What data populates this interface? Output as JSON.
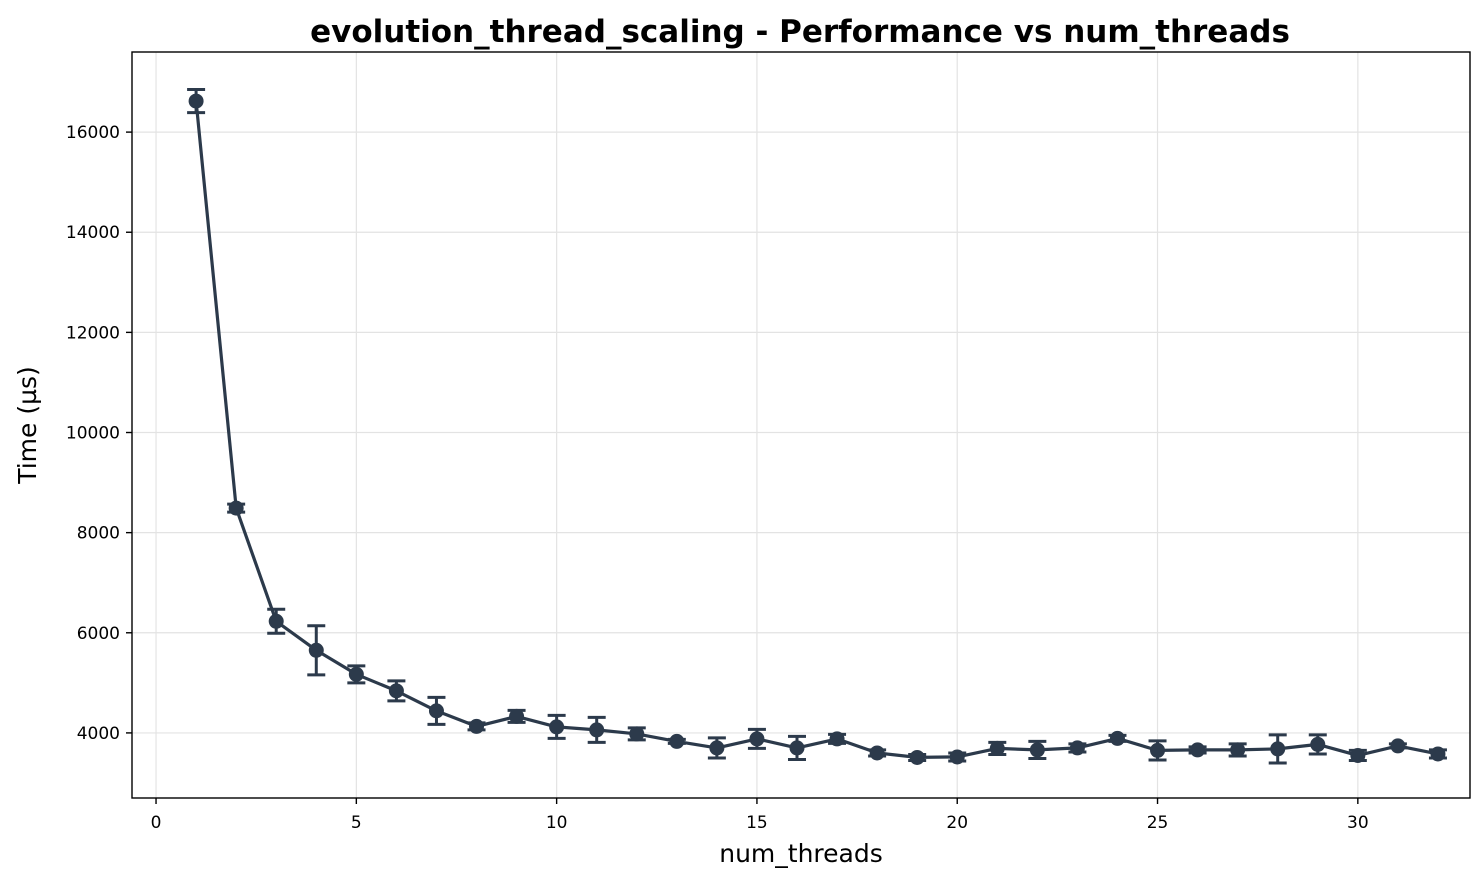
{
  "chart_data": {
    "type": "line",
    "title": "evolution_thread_scaling - Performance vs num_threads",
    "xlabel": "num_threads",
    "ylabel": "Time (µs)",
    "xlim": [
      -0.6,
      32.8
    ],
    "ylim": [
      2700,
      17600
    ],
    "x_ticks": [
      0,
      5,
      10,
      15,
      20,
      25,
      30
    ],
    "y_ticks": [
      4000,
      6000,
      8000,
      10000,
      12000,
      14000,
      16000
    ],
    "grid": true,
    "color": "#2c3a4b",
    "series": [
      {
        "x": [
          1,
          2,
          3,
          4,
          5,
          6,
          7,
          8,
          9,
          10,
          11,
          12,
          13,
          14,
          15,
          16,
          17,
          18,
          19,
          20,
          21,
          22,
          23,
          24,
          25,
          26,
          27,
          28,
          29,
          30,
          31,
          32
        ],
        "values": [
          16620,
          8490,
          6230,
          5650,
          5170,
          4840,
          4440,
          4130,
          4330,
          4120,
          4060,
          3980,
          3830,
          3700,
          3880,
          3700,
          3880,
          3600,
          3510,
          3520,
          3690,
          3660,
          3700,
          3890,
          3650,
          3660,
          3660,
          3680,
          3770,
          3550,
          3740,
          3580
        ],
        "error": [
          230,
          80,
          240,
          490,
          170,
          200,
          270,
          70,
          120,
          230,
          250,
          120,
          40,
          200,
          190,
          230,
          90,
          60,
          60,
          80,
          120,
          170,
          80,
          60,
          190,
          60,
          120,
          280,
          190,
          100,
          40,
          80
        ]
      }
    ]
  }
}
